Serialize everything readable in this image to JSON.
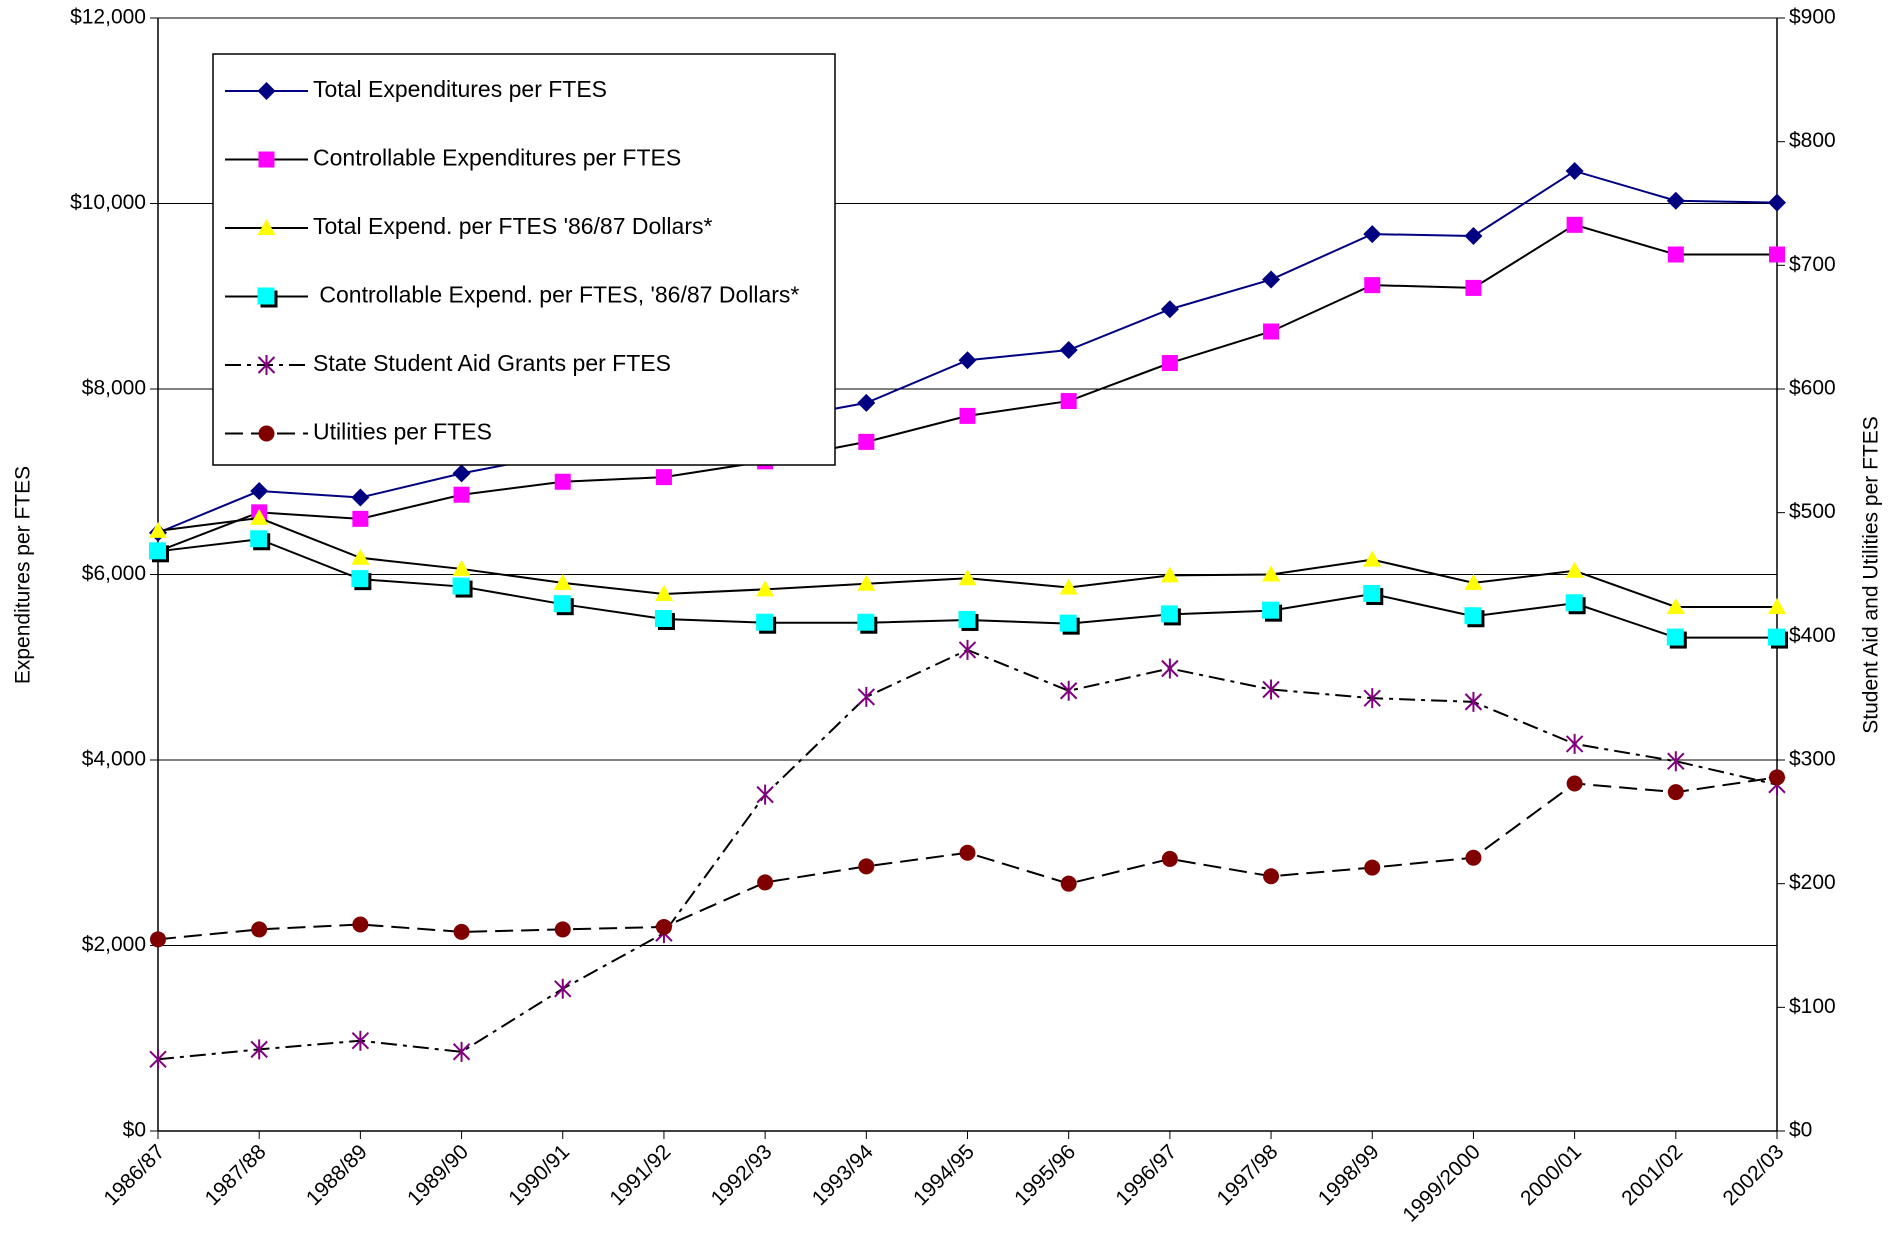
{
  "chart_data": {
    "type": "line",
    "y_label": "Expenditures per FTES",
    "y2_label": "Student Aid and Utilities per FTES",
    "categories": [
      "1986/87",
      "1987/88",
      "1988/89",
      "1989/90",
      "1990/91",
      "1991/92",
      "1992/93",
      "1993/94",
      "1994/95",
      "1995/96",
      "1996/97",
      "1997/98",
      "1998/99",
      "1999/2000",
      "2000/01",
      "2001/02",
      "2002/03"
    ],
    "ylim": [
      0,
      12000
    ],
    "yticks": [
      {
        "value": 0,
        "label": "$0"
      },
      {
        "value": 2000,
        "label": "$2,000"
      },
      {
        "value": 4000,
        "label": "$4,000"
      },
      {
        "value": 6000,
        "label": "$6,000"
      },
      {
        "value": 8000,
        "label": "$8,000"
      },
      {
        "value": 10000,
        "label": "$10,000"
      },
      {
        "value": 12000,
        "label": "$12,000"
      }
    ],
    "y2lim": [
      0,
      900
    ],
    "y2ticks": [
      {
        "value": 0,
        "label": "$0"
      },
      {
        "value": 100,
        "label": "$100"
      },
      {
        "value": 200,
        "label": "$200"
      },
      {
        "value": 300,
        "label": "$300"
      },
      {
        "value": 400,
        "label": "$400"
      },
      {
        "value": 500,
        "label": "$500"
      },
      {
        "value": 600,
        "label": "$600"
      },
      {
        "value": 700,
        "label": "$700"
      },
      {
        "value": 800,
        "label": "$800"
      },
      {
        "value": 900,
        "label": "$900"
      }
    ],
    "grid": true,
    "legend": "upper left",
    "series": [
      {
        "name": "Total Expenditures per FTES",
        "color": "#000080",
        "line_color": "#000080",
        "marker": "diamond",
        "dash": "solid",
        "values": [
          6450,
          6900,
          6830,
          7090,
          7300,
          7450,
          7650,
          7850,
          8310,
          8420,
          8860,
          9180,
          9670,
          9650,
          10350,
          10030,
          10010
        ]
      },
      {
        "name": "Controllable Expenditures per FTES",
        "color": "#ff00ff",
        "line_color": "#000000",
        "marker": "square",
        "dash": "solid",
        "values": [
          6250,
          6670,
          6600,
          6860,
          7000,
          7050,
          7220,
          7430,
          7710,
          7870,
          8280,
          8620,
          9120,
          9090,
          9770,
          9450,
          9450
        ]
      },
      {
        "name": "Total Expend. per FTES '86/87 Dollars*",
        "color": "#ffff00",
        "line_color": "#000000",
        "marker": "triangle",
        "dash": "solid",
        "values": [
          6470,
          6610,
          6180,
          6060,
          5910,
          5790,
          5840,
          5900,
          5960,
          5860,
          5990,
          6000,
          6160,
          5910,
          6040,
          5650,
          5650
        ]
      },
      {
        "name": " Controllable Expend. per FTES, '86/87 Dollars*",
        "color": "#00ffff",
        "line_color": "#000000",
        "marker": "shadowsquare",
        "dash": "solid",
        "values": [
          6250,
          6380,
          5950,
          5870,
          5680,
          5520,
          5480,
          5480,
          5510,
          5470,
          5570,
          5610,
          5790,
          5550,
          5690,
          5320,
          5320
        ]
      },
      {
        "name": "State Student Aid Grants per FTES",
        "color": "#800080",
        "line_color": "#000000",
        "marker": "star",
        "dash": "dashdot",
        "axis": "y2",
        "values": [
          58,
          66,
          73,
          64,
          115,
          160,
          272,
          351,
          389,
          356,
          374,
          357,
          350,
          347,
          313,
          299,
          280
        ]
      },
      {
        "name": "Utilities per FTES",
        "color": "#800000",
        "line_color": "#000000",
        "marker": "circle",
        "dash": "dash",
        "axis": "y2",
        "values": [
          155,
          163,
          167,
          161,
          163,
          165,
          201,
          214,
          225,
          200,
          220,
          206,
          213,
          221,
          281,
          274,
          286
        ]
      }
    ]
  }
}
